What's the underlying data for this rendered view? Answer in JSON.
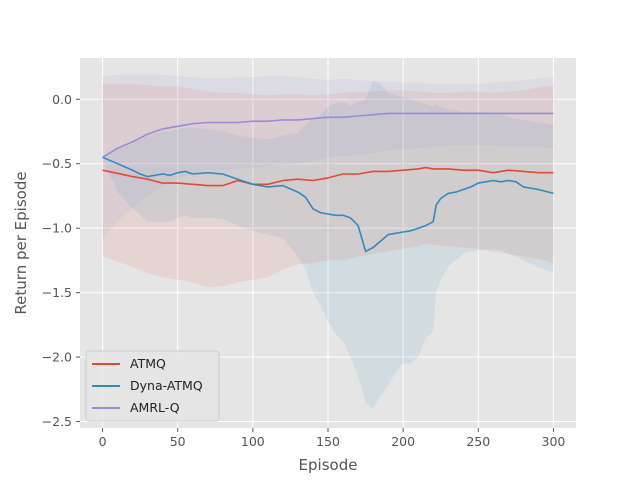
{
  "chart_data": {
    "type": "line",
    "title": "",
    "xlabel": "Episode",
    "ylabel": "Return per Episode",
    "xlim": [
      -15,
      315
    ],
    "ylim": [
      -2.55,
      0.32
    ],
    "xticks": [
      0,
      50,
      100,
      150,
      200,
      250,
      300
    ],
    "yticks": [
      0.0,
      -0.5,
      -1.0,
      -1.5,
      -2.0,
      -2.5
    ],
    "ytick_labels": [
      "0.0",
      "−0.5",
      "−1.0",
      "−1.5",
      "−2.0",
      "−2.5"
    ],
    "grid": true,
    "legend_position": "lower-left",
    "series": [
      {
        "name": "ATMQ",
        "color": "#E24A33",
        "x": [
          0,
          20,
          30,
          40,
          50,
          60,
          70,
          80,
          90,
          100,
          110,
          120,
          130,
          140,
          150,
          160,
          170,
          180,
          190,
          200,
          210,
          215,
          220,
          230,
          240,
          250,
          260,
          270,
          280,
          290,
          300
        ],
        "mean": [
          -0.55,
          -0.6,
          -0.62,
          -0.65,
          -0.65,
          -0.66,
          -0.67,
          -0.67,
          -0.63,
          -0.66,
          -0.66,
          -0.63,
          -0.62,
          -0.63,
          -0.61,
          -0.58,
          -0.58,
          -0.56,
          -0.56,
          -0.55,
          -0.54,
          -0.53,
          -0.54,
          -0.54,
          -0.55,
          -0.55,
          -0.57,
          -0.55,
          -0.56,
          -0.57,
          -0.57
        ],
        "upper": [
          0.12,
          0.12,
          0.11,
          0.1,
          0.1,
          0.08,
          0.06,
          0.05,
          0.05,
          0.04,
          0.03,
          0.04,
          0.04,
          0.03,
          0.04,
          0.05,
          0.06,
          0.06,
          0.07,
          0.07,
          0.06,
          0.06,
          0.05,
          0.05,
          0.06,
          0.06,
          0.05,
          0.06,
          0.07,
          0.09,
          0.11
        ],
        "lower": [
          -1.22,
          -1.3,
          -1.35,
          -1.38,
          -1.4,
          -1.42,
          -1.46,
          -1.45,
          -1.42,
          -1.4,
          -1.38,
          -1.32,
          -1.28,
          -1.27,
          -1.25,
          -1.25,
          -1.22,
          -1.2,
          -1.18,
          -1.16,
          -1.14,
          -1.12,
          -1.13,
          -1.14,
          -1.15,
          -1.16,
          -1.18,
          -1.2,
          -1.22,
          -1.24,
          -1.27
        ]
      },
      {
        "name": "Dyna-ATMQ",
        "color": "#348ABD",
        "x": [
          0,
          10,
          20,
          25,
          30,
          40,
          45,
          50,
          55,
          60,
          70,
          80,
          90,
          100,
          110,
          120,
          130,
          135,
          140,
          145,
          150,
          155,
          160,
          165,
          170,
          175,
          180,
          185,
          190,
          195,
          200,
          205,
          210,
          215,
          220,
          222,
          225,
          230,
          235,
          240,
          245,
          250,
          255,
          260,
          265,
          270,
          275,
          280,
          290,
          300
        ],
        "mean": [
          -0.45,
          -0.5,
          -0.55,
          -0.58,
          -0.6,
          -0.58,
          -0.59,
          -0.57,
          -0.56,
          -0.58,
          -0.57,
          -0.58,
          -0.62,
          -0.66,
          -0.68,
          -0.67,
          -0.72,
          -0.76,
          -0.85,
          -0.88,
          -0.89,
          -0.9,
          -0.9,
          -0.92,
          -0.98,
          -1.18,
          -1.15,
          -1.1,
          -1.05,
          -1.04,
          -1.03,
          -1.02,
          -1.0,
          -0.98,
          -0.95,
          -0.82,
          -0.77,
          -0.73,
          -0.72,
          -0.7,
          -0.68,
          -0.65,
          -0.64,
          -0.63,
          -0.64,
          -0.63,
          -0.64,
          -0.68,
          -0.7,
          -0.73
        ],
        "upper": [
          -0.45,
          -0.38,
          -0.32,
          -0.3,
          -0.28,
          -0.25,
          -0.25,
          -0.23,
          -0.22,
          -0.22,
          -0.23,
          -0.25,
          -0.28,
          -0.3,
          -0.31,
          -0.28,
          -0.26,
          -0.2,
          -0.15,
          -0.12,
          -0.06,
          -0.03,
          -0.02,
          -0.05,
          -0.02,
          0.0,
          0.14,
          0.12,
          0.05,
          0.03,
          0.02,
          0.0,
          -0.02,
          -0.04,
          -0.05,
          -0.04,
          -0.06,
          -0.08,
          -0.08,
          -0.1,
          -0.1,
          -0.1,
          -0.1,
          -0.12,
          -0.12,
          -0.14,
          -0.15,
          -0.16,
          -0.18,
          -0.2
        ],
        "lower": [
          -0.47,
          -0.72,
          -0.85,
          -0.9,
          -0.95,
          -0.95,
          -0.95,
          -0.92,
          -0.9,
          -0.92,
          -0.92,
          -0.93,
          -0.98,
          -1.02,
          -1.05,
          -1.08,
          -1.22,
          -1.32,
          -1.5,
          -1.6,
          -1.72,
          -1.82,
          -1.88,
          -2.0,
          -2.15,
          -2.35,
          -2.4,
          -2.3,
          -2.22,
          -2.12,
          -2.05,
          -2.05,
          -2.0,
          -1.85,
          -1.8,
          -1.5,
          -1.4,
          -1.3,
          -1.25,
          -1.2,
          -1.18,
          -1.17,
          -1.17,
          -1.16,
          -1.17,
          -1.2,
          -1.22,
          -1.25,
          -1.3,
          -1.35
        ]
      },
      {
        "name": "AMRL-Q",
        "color": "#988ED5",
        "x": [
          0,
          10,
          20,
          30,
          40,
          50,
          60,
          70,
          80,
          90,
          100,
          110,
          120,
          130,
          140,
          150,
          160,
          170,
          180,
          190,
          200,
          210,
          220,
          230,
          240,
          250,
          260,
          270,
          280,
          290,
          300
        ],
        "mean": [
          -0.45,
          -0.38,
          -0.33,
          -0.27,
          -0.23,
          -0.21,
          -0.19,
          -0.18,
          -0.18,
          -0.18,
          -0.17,
          -0.17,
          -0.16,
          -0.16,
          -0.15,
          -0.14,
          -0.14,
          -0.13,
          -0.12,
          -0.11,
          -0.11,
          -0.11,
          -0.11,
          -0.11,
          -0.11,
          -0.11,
          -0.11,
          -0.11,
          -0.11,
          -0.11,
          -0.11
        ],
        "upper": [
          0.18,
          0.19,
          0.19,
          0.19,
          0.19,
          0.18,
          0.17,
          0.16,
          0.16,
          0.17,
          0.17,
          0.18,
          0.18,
          0.17,
          0.16,
          0.15,
          0.16,
          0.15,
          0.14,
          0.14,
          0.13,
          0.13,
          0.12,
          0.12,
          0.12,
          0.12,
          0.13,
          0.14,
          0.15,
          0.16,
          0.17
        ],
        "lower": [
          -1.08,
          -0.95,
          -0.85,
          -0.75,
          -0.68,
          -0.62,
          -0.58,
          -0.55,
          -0.55,
          -0.54,
          -0.53,
          -0.52,
          -0.5,
          -0.5,
          -0.48,
          -0.45,
          -0.44,
          -0.43,
          -0.42,
          -0.4,
          -0.39,
          -0.38,
          -0.37,
          -0.36,
          -0.36,
          -0.36,
          -0.36,
          -0.37,
          -0.37,
          -0.37,
          -0.38
        ]
      }
    ]
  }
}
